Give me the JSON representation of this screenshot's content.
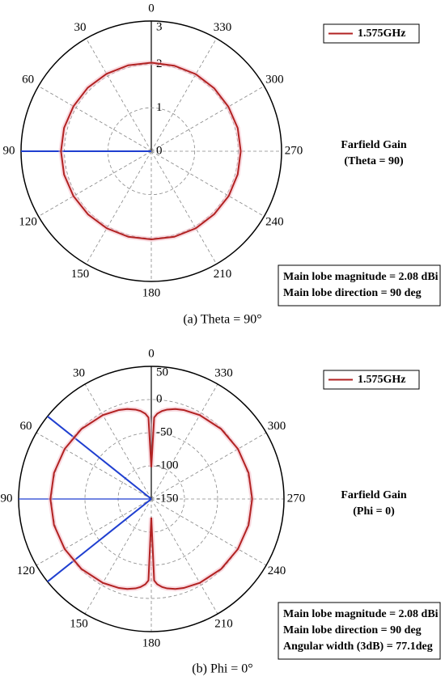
{
  "chart_data": [
    {
      "type": "polar",
      "rlim": [
        0,
        3
      ],
      "rticks": [
        0,
        1,
        2,
        3
      ],
      "angle_ticks": [
        0,
        30,
        60,
        90,
        120,
        150,
        180,
        210,
        240,
        270,
        300,
        330
      ],
      "series": [
        {
          "name": "1.575GHz",
          "color": "#b22222",
          "theta": [
            0,
            15,
            30,
            45,
            60,
            75,
            90,
            105,
            120,
            135,
            150,
            165,
            180,
            195,
            210,
            225,
            240,
            255,
            270,
            285,
            300,
            315,
            330,
            345,
            360
          ],
          "values": [
            2.04,
            2.05,
            2.06,
            2.07,
            2.07,
            2.08,
            2.08,
            2.08,
            2.07,
            2.06,
            2.05,
            2.04,
            2.03,
            2.04,
            2.05,
            2.05,
            2.06,
            2.06,
            2.06,
            2.06,
            2.05,
            2.05,
            2.05,
            2.04,
            2.04
          ]
        }
      ],
      "direction_lines": [
        90
      ],
      "direction_color": "#1f3fd0",
      "label_box": [
        "Farfield Gain",
        "(Theta = 90)"
      ],
      "info_box": [
        "Main lobe magnitude = 2.08 dBi",
        "Main lobe direction = 90 deg"
      ],
      "caption": "(a) Theta = 90°"
    },
    {
      "type": "polar",
      "rlim": [
        -150,
        50
      ],
      "rticks": [
        -150,
        -100,
        -50,
        0,
        50
      ],
      "angle_ticks": [
        0,
        30,
        60,
        90,
        120,
        150,
        180,
        210,
        240,
        270,
        300,
        330
      ],
      "series": [
        {
          "name": "1.575GHz",
          "color": "#b22222",
          "theta": [
            0,
            2,
            4,
            7,
            10,
            15,
            20,
            30,
            45,
            60,
            75,
            90,
            105,
            120,
            135,
            150,
            160,
            165,
            170,
            173,
            176,
            178,
            180,
            182,
            184,
            187,
            190,
            195,
            200,
            210,
            225,
            240,
            255,
            270,
            285,
            300,
            315,
            330,
            340,
            345,
            350,
            353,
            356,
            358,
            360
          ],
          "values": [
            -102,
            -27,
            -21,
            -16.3,
            -13.1,
            -9.6,
            -7.2,
            -3.9,
            -0.9,
            0.8,
            1.8,
            2.08,
            1.8,
            0.8,
            -0.9,
            -3.9,
            -7.2,
            -9.6,
            -13.1,
            -16.3,
            -21,
            -27,
            -122,
            -27,
            -21,
            -16.3,
            -13.1,
            -9.6,
            -7.2,
            -3.9,
            -0.9,
            0.8,
            1.8,
            2.08,
            1.8,
            0.8,
            -0.9,
            -3.9,
            -7.2,
            -9.6,
            -13.1,
            -16.3,
            -21,
            -27,
            -102
          ]
        }
      ],
      "direction_lines": [
        51.45,
        90,
        128.55
      ],
      "direction_color": "#1f3fd0",
      "label_box": [
        "Farfield Gain",
        "(Phi = 0)"
      ],
      "info_box": [
        "Main lobe magnitude = 2.08 dBi",
        "Main lobe direction = 90 deg",
        "Angular width (3dB) = 77.1deg"
      ],
      "caption": "(b) Phi = 0°"
    }
  ]
}
